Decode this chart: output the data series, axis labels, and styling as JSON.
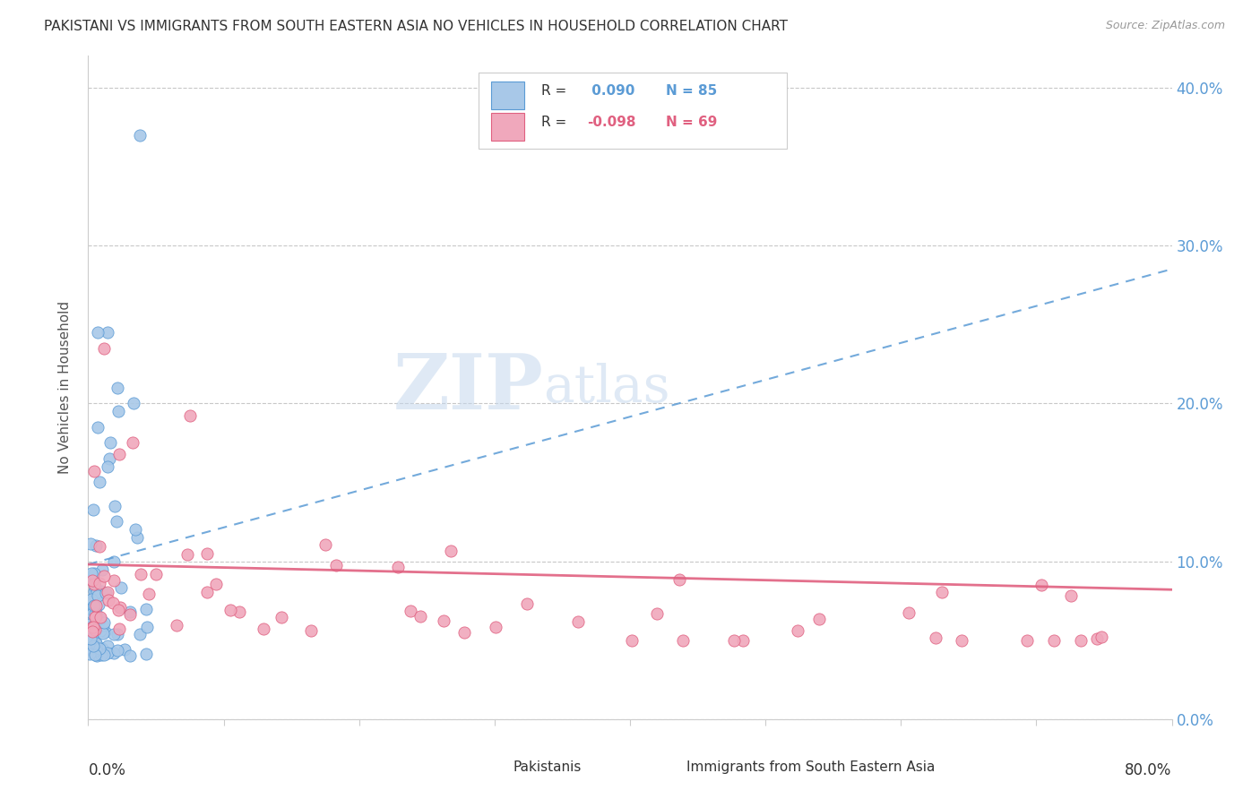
{
  "title": "PAKISTANI VS IMMIGRANTS FROM SOUTH EASTERN ASIA NO VEHICLES IN HOUSEHOLD CORRELATION CHART",
  "source": "Source: ZipAtlas.com",
  "ylabel": "No Vehicles in Household",
  "xlim": [
    0.0,
    0.8
  ],
  "ylim": [
    0.0,
    0.42
  ],
  "ytick_values": [
    0.0,
    0.1,
    0.2,
    0.3,
    0.4
  ],
  "xtick_values": [
    0.0,
    0.1,
    0.2,
    0.3,
    0.4,
    0.5,
    0.6,
    0.7,
    0.8
  ],
  "scatter1_color": "#a8c8e8",
  "scatter2_color": "#f0a8bc",
  "line1_color": "#5b9bd5",
  "line2_color": "#e06080",
  "right_axis_color": "#5b9bd5",
  "R1": 0.09,
  "N1": 85,
  "R2": -0.098,
  "N2": 69,
  "blue_trend_y0": 0.098,
  "blue_trend_y1": 0.285,
  "pink_trend_y0": 0.098,
  "pink_trend_y1": 0.082,
  "watermark_zip": "ZIP",
  "watermark_atlas": "atlas",
  "legend_r1": " 0.090",
  "legend_n1": "85",
  "legend_r2": "-0.098",
  "legend_n2": "69"
}
